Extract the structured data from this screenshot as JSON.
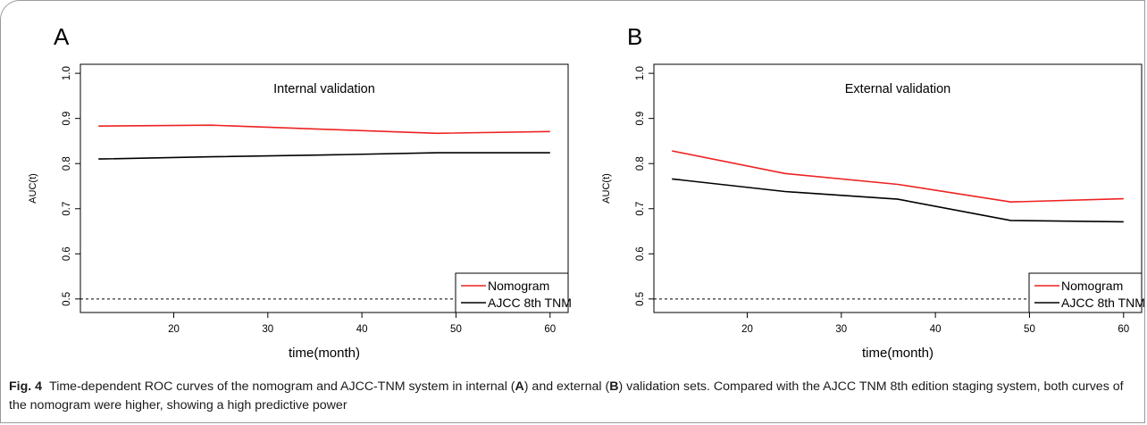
{
  "chart_data": [
    {
      "type": "line",
      "panel": "A",
      "title": "Internal validation",
      "xlabel": "time(month)",
      "ylabel": "AUC(t)",
      "xlim": [
        12,
        60
      ],
      "ylim": [
        0.5,
        1.0
      ],
      "xticks": [
        "20",
        "30",
        "40",
        "50",
        "60"
      ],
      "yticks": [
        "0.5",
        "0.6",
        "0.7",
        "0.8",
        "0.9",
        "1.0"
      ],
      "reference_line": 0.5,
      "legend_position": "bottom-right",
      "series": [
        {
          "name": "Nomogram",
          "color": "#ee2222",
          "x": [
            12,
            24,
            36,
            48,
            60
          ],
          "y": [
            0.883,
            0.885,
            0.876,
            0.867,
            0.871
          ]
        },
        {
          "name": "AJCC 8th TNM",
          "color": "#000000",
          "x": [
            12,
            24,
            36,
            48,
            60
          ],
          "y": [
            0.81,
            0.815,
            0.819,
            0.824,
            0.824
          ]
        }
      ]
    },
    {
      "type": "line",
      "panel": "B",
      "title": "External validation",
      "xlabel": "time(month)",
      "ylabel": "AUC(t)",
      "xlim": [
        12,
        60
      ],
      "ylim": [
        0.5,
        1.0
      ],
      "xticks": [
        "20",
        "30",
        "40",
        "50",
        "60"
      ],
      "yticks": [
        "0.5",
        "0.6",
        "0.7",
        "0.8",
        "0.9",
        "1.0"
      ],
      "reference_line": 0.5,
      "legend_position": "bottom-right",
      "series": [
        {
          "name": "Nomogram",
          "color": "#ee2222",
          "x": [
            12,
            24,
            36,
            48,
            60
          ],
          "y": [
            0.828,
            0.778,
            0.754,
            0.715,
            0.722
          ]
        },
        {
          "name": "AJCC 8th TNM",
          "color": "#000000",
          "x": [
            12,
            24,
            36,
            48,
            60
          ],
          "y": [
            0.766,
            0.738,
            0.721,
            0.674,
            0.671
          ]
        }
      ]
    }
  ],
  "caption": {
    "label": "Fig. 4",
    "part1": "Time-dependent ROC curves of the nomogram and AJCC-TNM system in internal (",
    "a": "A",
    "part2": ") and external (",
    "b": "B",
    "part3": ") validation sets. Compared with the AJCC TNM 8th edition staging system, both curves of the nomogram were higher, showing a high predictive power"
  }
}
